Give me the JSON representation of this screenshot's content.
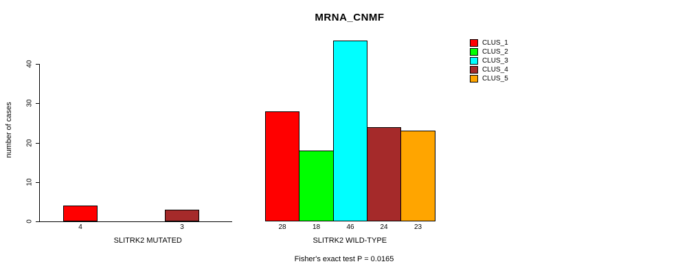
{
  "title": "MRNA_CNMF",
  "y_axis": {
    "label": "number of cases",
    "tick_labels": [
      "0",
      "10",
      "20",
      "30",
      "40"
    ]
  },
  "footnote": "Fisher's exact test P = 0.0165",
  "legend": {
    "items": [
      {
        "label": "CLUS_1",
        "color": "#FF0000"
      },
      {
        "label": "CLUS_2",
        "color": "#00FF00"
      },
      {
        "label": "CLUS_3",
        "color": "#00FFFF"
      },
      {
        "label": "CLUS_4",
        "color": "#A52A2A"
      },
      {
        "label": "CLUS_5",
        "color": "#FFA500"
      }
    ]
  },
  "chart_data": {
    "type": "bar",
    "title": "MRNA_CNMF",
    "xlabel": "",
    "ylabel": "number of cases",
    "ylim": [
      0,
      46.5
    ],
    "y_ticks": [
      0,
      10,
      20,
      30,
      40
    ],
    "grid": false,
    "legend_position": "top-right",
    "categories": [
      "CLUS_1",
      "CLUS_2",
      "CLUS_3",
      "CLUS_4",
      "CLUS_5"
    ],
    "series_colors": [
      "#FF0000",
      "#00FF00",
      "#00FFFF",
      "#A52A2A",
      "#FFA500"
    ],
    "groups": [
      {
        "label": "SLITRK2 MUTATED",
        "values": [
          4,
          0,
          0,
          3,
          0
        ]
      },
      {
        "label": "SLITRK2 WILD-TYPE",
        "values": [
          28,
          18,
          46,
          24,
          23
        ]
      }
    ],
    "zero_value_bars_hidden": true,
    "bar_value_labels": [
      [
        "4",
        "3"
      ],
      [
        "28",
        "18",
        "46",
        "24",
        "23"
      ]
    ],
    "annotation": "Fisher's exact test P = 0.0165"
  }
}
